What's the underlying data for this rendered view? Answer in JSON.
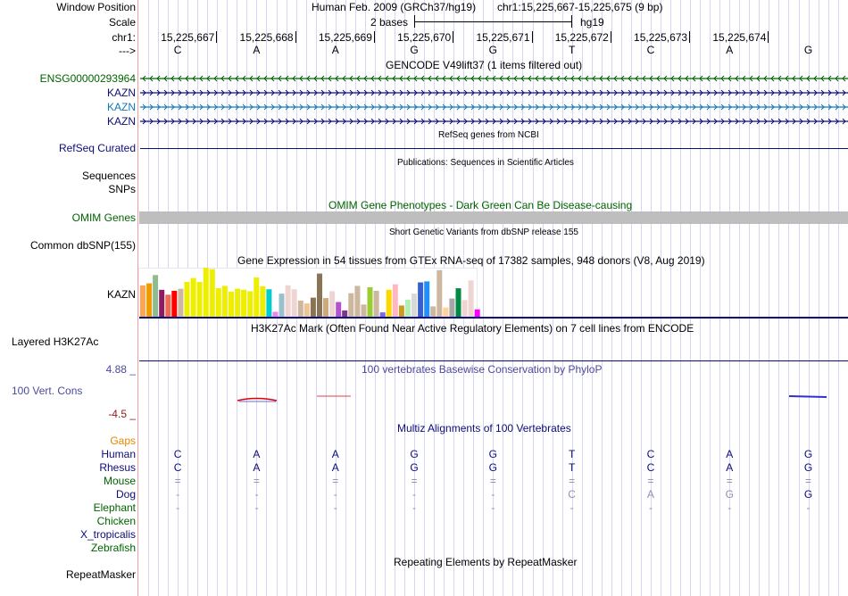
{
  "header": {
    "window_position_label": "Window Position",
    "scale_label": "Scale",
    "chrom_label": "chr1:",
    "strand_label": "--->",
    "assembly_text": "Human Feb. 2009 (GRCh37/hg19)",
    "region_text": "chr1:15,225,667-15,225,675 (9 bp)",
    "scale_text": "2 bases",
    "scale_db": "hg19",
    "positions": [
      "15,225,667",
      "15,225,668",
      "15,225,669",
      "15,225,670",
      "15,225,671",
      "15,225,672",
      "15,225,673",
      "15,225,674"
    ],
    "bases": [
      "C",
      "A",
      "A",
      "G",
      "G",
      "T",
      "C",
      "A",
      "G"
    ]
  },
  "gencode": {
    "title": "GENCODE V49lift37 (1 items filtered out)",
    "items": [
      {
        "label": "ENSG00000293964",
        "color": "#006400",
        "strand": "-"
      },
      {
        "label": "KAZN",
        "color": "#0c0c78",
        "strand": "+"
      },
      {
        "label": "KAZN",
        "color": "#1078b4",
        "strand": "+"
      },
      {
        "label": "KAZN",
        "color": "#0c0c78",
        "strand": "+"
      }
    ]
  },
  "refseq": {
    "title": "RefSeq genes from NCBI",
    "label": "RefSeq Curated",
    "color": "#0c0c78"
  },
  "publications": {
    "title": "Publications: Sequences in Scientific Articles",
    "labels": [
      "Sequences",
      "SNPs"
    ]
  },
  "omim": {
    "title": "OMIM Gene Phenotypes - Dark Green Can Be Disease-causing",
    "label": "OMIM Genes",
    "color": "#006400",
    "bar_color": "#bebebe"
  },
  "dbsnp": {
    "title": "Short Genetic Variants from dbSNP release 155",
    "label": "Common dbSNP(155)"
  },
  "gtex": {
    "title": "Gene Expression in 54 tissues from GTEx RNA-seq of 17382 samples, 948 donors (V8, Aug 2019)",
    "label": "KAZN",
    "baseline_color": "#0c0c78",
    "tissues": [
      {
        "color": "#ffa54f",
        "value": 0.64
      },
      {
        "color": "#ee9a00",
        "value": 0.68
      },
      {
        "color": "#8fbc8f",
        "value": 0.85
      },
      {
        "color": "#8b1c62",
        "value": 0.55
      },
      {
        "color": "#ee6a50",
        "value": 0.45
      },
      {
        "color": "#ff0000",
        "value": 0.53
      },
      {
        "color": "#cdb79e",
        "value": 0.57
      },
      {
        "color": "#eeee00",
        "value": 0.71
      },
      {
        "color": "#eeee00",
        "value": 0.79
      },
      {
        "color": "#eeee00",
        "value": 0.71
      },
      {
        "color": "#eeee00",
        "value": 1.0
      },
      {
        "color": "#eeee00",
        "value": 0.97
      },
      {
        "color": "#eeee00",
        "value": 0.58
      },
      {
        "color": "#eeee00",
        "value": 0.63
      },
      {
        "color": "#eeee00",
        "value": 0.51
      },
      {
        "color": "#eeee00",
        "value": 0.57
      },
      {
        "color": "#eeee00",
        "value": 0.55
      },
      {
        "color": "#eeee00",
        "value": 0.52
      },
      {
        "color": "#eeee00",
        "value": 0.8
      },
      {
        "color": "#eeee00",
        "value": 0.62
      },
      {
        "color": "#00cdcd",
        "value": 0.56
      },
      {
        "color": "#ee82ee",
        "value": 0.1
      },
      {
        "color": "#9ac0cd",
        "value": 0.47
      },
      {
        "color": "#eed5d2",
        "value": 0.64
      },
      {
        "color": "#eed5d2",
        "value": 0.56
      },
      {
        "color": "#cdb79e",
        "value": 0.33
      },
      {
        "color": "#eec591",
        "value": 0.27
      },
      {
        "color": "#8b7355",
        "value": 0.39
      },
      {
        "color": "#8b7355",
        "value": 0.88
      },
      {
        "color": "#cdaa7d",
        "value": 0.38
      },
      {
        "color": "#eed5d2",
        "value": 0.52
      },
      {
        "color": "#b452cd",
        "value": 0.3
      },
      {
        "color": "#7a378b",
        "value": 0.13
      },
      {
        "color": "#cdb79e",
        "value": 0.48
      },
      {
        "color": "#cdb79e",
        "value": 0.63
      },
      {
        "color": "#cdb79e",
        "value": 0.25
      },
      {
        "color": "#9acd32",
        "value": 0.6
      },
      {
        "color": "#cdb79e",
        "value": 0.53
      },
      {
        "color": "#7a67ee",
        "value": 0.09
      },
      {
        "color": "#ffd700",
        "value": 0.55
      },
      {
        "color": "#ffb6c1",
        "value": 0.66
      },
      {
        "color": "#cd9b1d",
        "value": 0.23
      },
      {
        "color": "#b4eeb4",
        "value": 0.35
      },
      {
        "color": "#d9d9d9",
        "value": 0.47
      },
      {
        "color": "#3a5fcd",
        "value": 0.7
      },
      {
        "color": "#1e90ff",
        "value": 0.72
      },
      {
        "color": "#cdb79e",
        "value": 0.21
      },
      {
        "color": "#cdb79e",
        "value": 0.95
      },
      {
        "color": "#ffd39b",
        "value": 0.19
      },
      {
        "color": "#a6a6a6",
        "value": 0.37
      },
      {
        "color": "#008b45",
        "value": 0.58
      },
      {
        "color": "#eed5d2",
        "value": 0.34
      },
      {
        "color": "#eed5d2",
        "value": 0.74
      },
      {
        "color": "#ff00ff",
        "value": 0.15
      }
    ]
  },
  "h3k27ac": {
    "title": "H3K27Ac Mark (Often Found Near Active Regulatory Elements) on 7 cell lines from ENCODE",
    "label": "Layered H3K27Ac"
  },
  "phylop": {
    "title": "100 vertebrates Basewise Conservation by PhyloP",
    "label": "100 Vert. Cons",
    "max_label": "4.88 _",
    "min_label": "-4.5 _",
    "label_color": "#4a4a9c",
    "min_color": "#8b1a1a"
  },
  "multiz": {
    "title": "Multiz Alignments of 100 Vertebrates",
    "gaps_label": "Gaps",
    "gaps_color": "#e08a00",
    "species": [
      {
        "name": "Human",
        "color": "#0c0c78",
        "bases": [
          "C",
          "A",
          "A",
          "G",
          "G",
          "T",
          "C",
          "A",
          "G"
        ]
      },
      {
        "name": "Rhesus",
        "color": "#0c0c78",
        "bases": [
          "C",
          "A",
          "A",
          "G",
          "G",
          "T",
          "C",
          "A",
          "G"
        ]
      },
      {
        "name": "Mouse",
        "color": "#006400",
        "bases": [
          "=",
          "=",
          "=",
          "=",
          "=",
          "=",
          "=",
          "=",
          "="
        ]
      },
      {
        "name": "Dog",
        "color": "#0c0c78",
        "bases": [
          "-",
          "-",
          "-",
          "-",
          "-",
          "C",
          "A",
          "G",
          "G"
        ]
      },
      {
        "name": "Elephant",
        "color": "#006400",
        "bases": [
          "-",
          "-",
          "-",
          "-",
          "-",
          "-",
          "-",
          "-",
          "-"
        ]
      },
      {
        "name": "Chicken",
        "color": "#006400",
        "bases": []
      },
      {
        "name": "X_tropicalis",
        "color": "#0c0c78",
        "bases": []
      },
      {
        "name": "Zebrafish",
        "color": "#006400",
        "bases": []
      }
    ]
  },
  "repeatmasker": {
    "title": "Repeating Elements by RepeatMasker",
    "label": "RepeatMasker"
  }
}
